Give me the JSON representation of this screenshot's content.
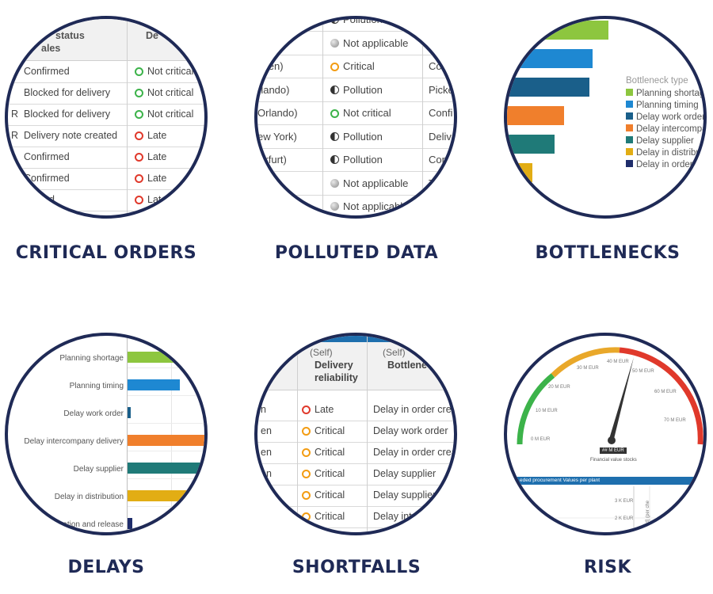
{
  "captions": {
    "critical_orders": "CRITICAL ORDERS",
    "polluted_data": "POLLUTED DATA",
    "bottlenecks": "BOTTLENECKS",
    "delays": "DELAYS",
    "shortfalls": "SHORTFALLS",
    "risk": "RISK"
  },
  "critical_orders": {
    "header": {
      "status_line1": "status",
      "status_line2": "ales",
      "col2": "De"
    },
    "rows": [
      {
        "prefix": "",
        "status": "Confirmed",
        "badge": "green",
        "value": "Not critical"
      },
      {
        "prefix": "",
        "status": "Blocked for delivery",
        "badge": "green",
        "value": "Not critical"
      },
      {
        "prefix": "R",
        "status": "Blocked for delivery",
        "badge": "green",
        "value": "Not critical"
      },
      {
        "prefix": "R",
        "status": "Delivery note created",
        "badge": "red",
        "value": "Late"
      },
      {
        "prefix": "",
        "status": "Confirmed",
        "badge": "red",
        "value": "Late"
      },
      {
        "prefix": "",
        "status": "Confirmed",
        "badge": "red",
        "value": "Late"
      },
      {
        "prefix": "",
        "status": "rfirmed",
        "badge": "red",
        "value": "Late"
      }
    ]
  },
  "polluted_data": {
    "rows": [
      {
        "location": "",
        "badge": "half",
        "value": "Pollution",
        "next": ""
      },
      {
        "location": "",
        "badge": "gray",
        "value": "Not applicable",
        "next": ""
      },
      {
        "location": "sden)",
        "badge": "orange",
        "value": "Critical",
        "next": "Co"
      },
      {
        "location": "rlando)",
        "badge": "half",
        "value": "Pollution",
        "next": "Picke"
      },
      {
        "location": "Orlando)",
        "badge": "green",
        "value": "Not critical",
        "next": "Confi"
      },
      {
        "location": "ew York)",
        "badge": "half",
        "value": "Pollution",
        "next": "Delive"
      },
      {
        "location": "nkfurt)",
        "badge": "half",
        "value": "Pollution",
        "next": "Con"
      },
      {
        "location": "kfurt)",
        "badge": "gray",
        "value": "Not applicable",
        "next": "T"
      },
      {
        "location": "",
        "badge": "gray",
        "value": "Not applicabl",
        "next": ""
      }
    ]
  },
  "bottlenecks": {
    "legend_title": "Bottleneck type",
    "legend": [
      "Planning shortag",
      "Planning timing",
      "Delay work order",
      "Delay intercompa",
      "Delay supplier",
      "Delay in distribut",
      "Delay in order cr"
    ],
    "colors": [
      "#8dc63f",
      "#1e88d2",
      "#1a5f8a",
      "#f07f2c",
      "#1f7a78",
      "#e2ad14",
      "#1f2d6b"
    ]
  },
  "delays": {
    "labels": [
      "Planning shortage",
      "Planning timing",
      "Delay work order",
      "Delay intercompany delivery",
      "Delay supplier",
      "Delay in distribution",
      "eation and release"
    ],
    "colors": [
      "#8dc63f",
      "#1e88d2",
      "#1a5f8a",
      "#f07f2c",
      "#1f7a78",
      "#e2ad14",
      "#1f2d6b"
    ]
  },
  "shortfalls": {
    "header": {
      "col1_line1": "(Self)",
      "col1_line2": "Delivery",
      "col1_line3": "reliability",
      "col2_line1": "(Self)",
      "col2_line2": "Bottlenec"
    },
    "rows": [
      {
        "prefix": "n",
        "badge": "red",
        "value": "Late",
        "bottleneck": "Delay in order crea"
      },
      {
        "prefix": "en",
        "badge": "orange",
        "value": "Critical",
        "bottleneck": "Delay work order"
      },
      {
        "prefix": "en",
        "badge": "orange",
        "value": "Critical",
        "bottleneck": "Delay in order creat"
      },
      {
        "prefix": "en",
        "badge": "orange",
        "value": "Critical",
        "bottleneck": "Delay supplier"
      },
      {
        "prefix": "n",
        "badge": "orange",
        "value": "Critical",
        "bottleneck": "Delay supplier"
      },
      {
        "prefix": "n",
        "badge": "orange",
        "value": "Critical",
        "bottleneck": "Delay interc"
      },
      {
        "prefix": "",
        "badge": "",
        "value": "al",
        "bottleneck": ""
      }
    ]
  },
  "risk": {
    "gauge_labels": [
      "0 M EUR",
      "10 M EUR",
      "20 M EUR",
      "30 M EUR",
      "40 M EUR",
      "50 M EUR",
      "60 M EUR",
      "70 M EUR"
    ],
    "value_badge": "## M EUR",
    "value_caption": "Financial value stocks",
    "panel_title": "eded procurement Values per plant",
    "axis_labels": [
      "3 K EUR",
      "2 K EUR"
    ],
    "axis_title": "ed] (per che"
  }
}
